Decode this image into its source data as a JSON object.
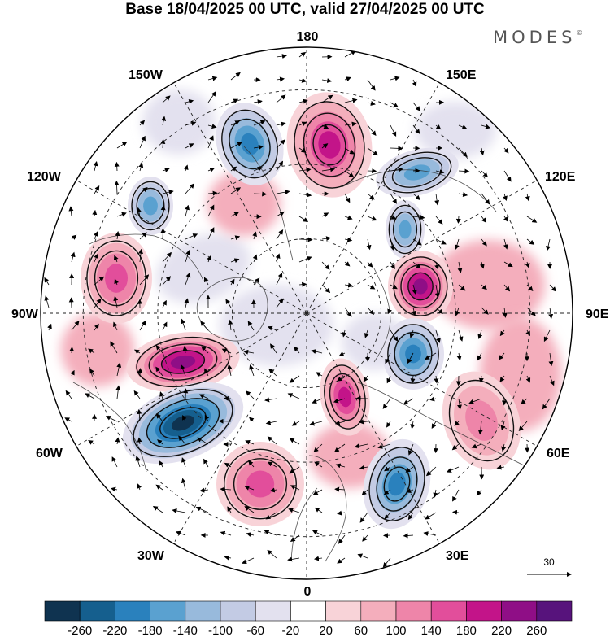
{
  "title": "Base 18/04/2025 00 UTC, valid 27/04/2025 00 UTC",
  "brand": "MODES",
  "brand_mark": "©",
  "longitude_labels": {
    "top": "180",
    "bottom": "0",
    "left": "90W",
    "right": "90E",
    "upper_left_1": "150W",
    "upper_left_2": "120W",
    "upper_right_1": "150E",
    "upper_right_2": "120E",
    "lower_left_1": "60W",
    "lower_left_2": "30W",
    "lower_right_1": "60E",
    "lower_right_2": "30E"
  },
  "reference_vector_label": "30",
  "colorbar": {
    "ticks": [
      "-260",
      "-220",
      "-180",
      "-140",
      "-100",
      "-60",
      "-20",
      "20",
      "60",
      "100",
      "140",
      "180",
      "220",
      "260"
    ],
    "colors": [
      "#0f3350",
      "#155f8e",
      "#2a81bd",
      "#5aa1d0",
      "#98badc",
      "#c3cbe4",
      "#e3e1ef",
      "#ffffff",
      "#f8d3d8",
      "#f4aebc",
      "#ee85a9",
      "#e24e9b",
      "#c31489",
      "#8f0e86",
      "#57137c"
    ]
  },
  "anomaly_centers": [
    {
      "value": 200,
      "lon_region": "180 / 160E"
    },
    {
      "value": -180,
      "lon_region": "160W"
    },
    {
      "value": -160,
      "lon_region": "130W"
    },
    {
      "value": -160,
      "lon_region": "130E"
    },
    {
      "value": -160,
      "lon_region": "110E"
    },
    {
      "value": 220,
      "lon_region": "100E"
    },
    {
      "value": -180,
      "lon_region": "70E"
    },
    {
      "value": 140,
      "lon_region": "95W"
    },
    {
      "value": 220,
      "lon_region": "70W"
    },
    {
      "value": -260,
      "lon_region": "50W"
    },
    {
      "value": 140,
      "lon_region": "20W"
    },
    {
      "value": 180,
      "lon_region": "10E"
    },
    {
      "value": -200,
      "lon_region": "40E"
    },
    {
      "value": 100,
      "lon_region": "70E"
    }
  ]
}
